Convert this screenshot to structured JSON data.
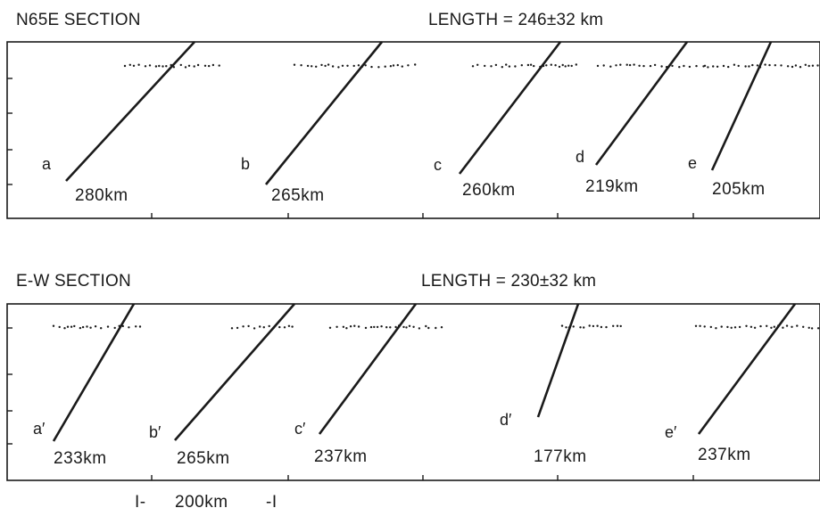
{
  "panels": [
    {
      "title": "N65E SECTION",
      "length_label": "LENGTH = 246±32 km",
      "slabs": [
        {
          "label": "a",
          "distance": "280km"
        },
        {
          "label": "b",
          "distance": "265km"
        },
        {
          "label": "c",
          "distance": "260km"
        },
        {
          "label": "d",
          "distance": "219km"
        },
        {
          "label": "e",
          "distance": "205km"
        }
      ]
    },
    {
      "title": "E-W SECTION",
      "length_label": "LENGTH = 230±32 km",
      "slabs": [
        {
          "label": "a′",
          "distance": "233km"
        },
        {
          "label": "b′",
          "distance": "265km"
        },
        {
          "label": "c′",
          "distance": "237km"
        },
        {
          "label": "d′",
          "distance": "177km"
        },
        {
          "label": "e′",
          "distance": "237km"
        }
      ]
    }
  ],
  "scale_bar": {
    "label": "200km"
  },
  "colors": {
    "ink": "#1a1a1a",
    "background": "#ffffff"
  }
}
